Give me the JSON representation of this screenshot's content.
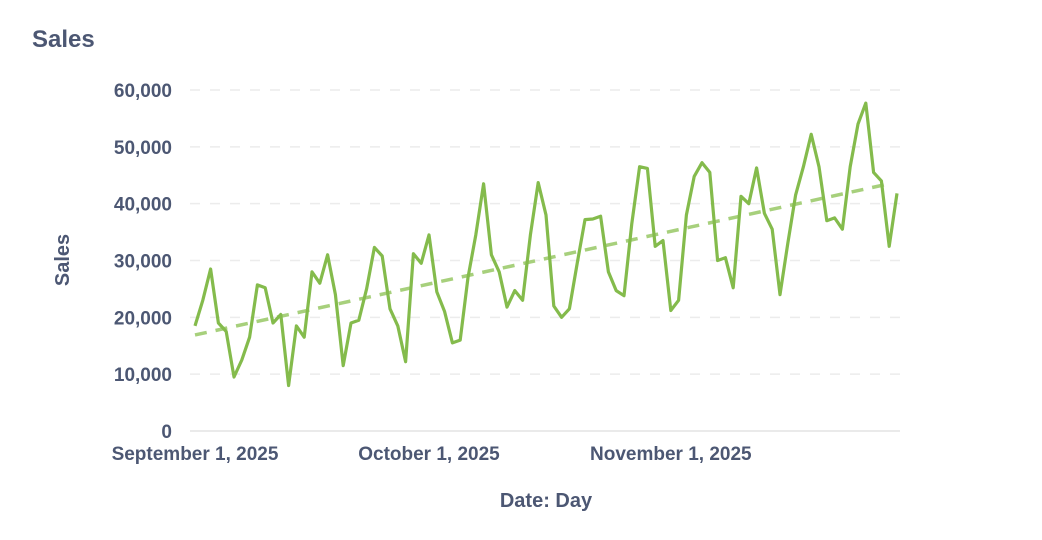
{
  "header": {
    "title": "Sales"
  },
  "chart_data": {
    "type": "line",
    "title": "Sales",
    "xlabel": "Date: Day",
    "ylabel": "Sales",
    "ylim": [
      0,
      60000
    ],
    "yticks": [
      0,
      10000,
      20000,
      30000,
      40000,
      50000,
      60000
    ],
    "ytick_labels": [
      "0",
      "10,000",
      "20,000",
      "30,000",
      "40,000",
      "50,000",
      "60,000"
    ],
    "xticks": [
      "2025-09-01",
      "2025-10-01",
      "2025-11-01"
    ],
    "xtick_labels": [
      "September 1, 2025",
      "October 1, 2025",
      "November 1, 2025"
    ],
    "xlim": [
      "2025-09-01",
      "2025-11-30"
    ],
    "grid": "horizontal dashed",
    "colors": {
      "line": "#84bb4c",
      "trend": "#a7d07c",
      "text": "#4c5773",
      "grid": "#ececec"
    },
    "series": [
      {
        "start": "2025-09-01",
        "interval": "day",
        "values": [
          18500,
          23000,
          28500,
          19000,
          17500,
          9500,
          12500,
          16500,
          25700,
          25200,
          19000,
          20500,
          8000,
          18500,
          16500,
          28000,
          26000,
          31000,
          24000,
          11500,
          19000,
          19500,
          25000,
          32300,
          30800,
          21500,
          18500,
          12200,
          31200,
          29500,
          34500,
          24500,
          21000,
          15500,
          16000,
          27000,
          34500,
          43500,
          31000,
          28000,
          21800,
          24700,
          23000,
          34500,
          43700,
          38000,
          22000,
          20000,
          21500,
          29500,
          37200,
          37300,
          37800,
          28000,
          24700,
          23800,
          36500,
          46500,
          46200,
          32500,
          33500,
          21200,
          23000,
          38000,
          44800,
          47200,
          45500,
          30000,
          30500,
          25200,
          41300,
          40000,
          46300,
          38300,
          35500,
          24000,
          33000,
          41500,
          46500,
          52200,
          46500,
          37000,
          37500,
          35500,
          46500,
          54000,
          57700,
          45500,
          44000,
          32500,
          41800
        ]
      }
    ],
    "trend": {
      "type": "linear",
      "start": {
        "x": "2025-09-01",
        "y": 16900
      },
      "end": {
        "x": "2025-11-29",
        "y": 43500
      }
    }
  }
}
